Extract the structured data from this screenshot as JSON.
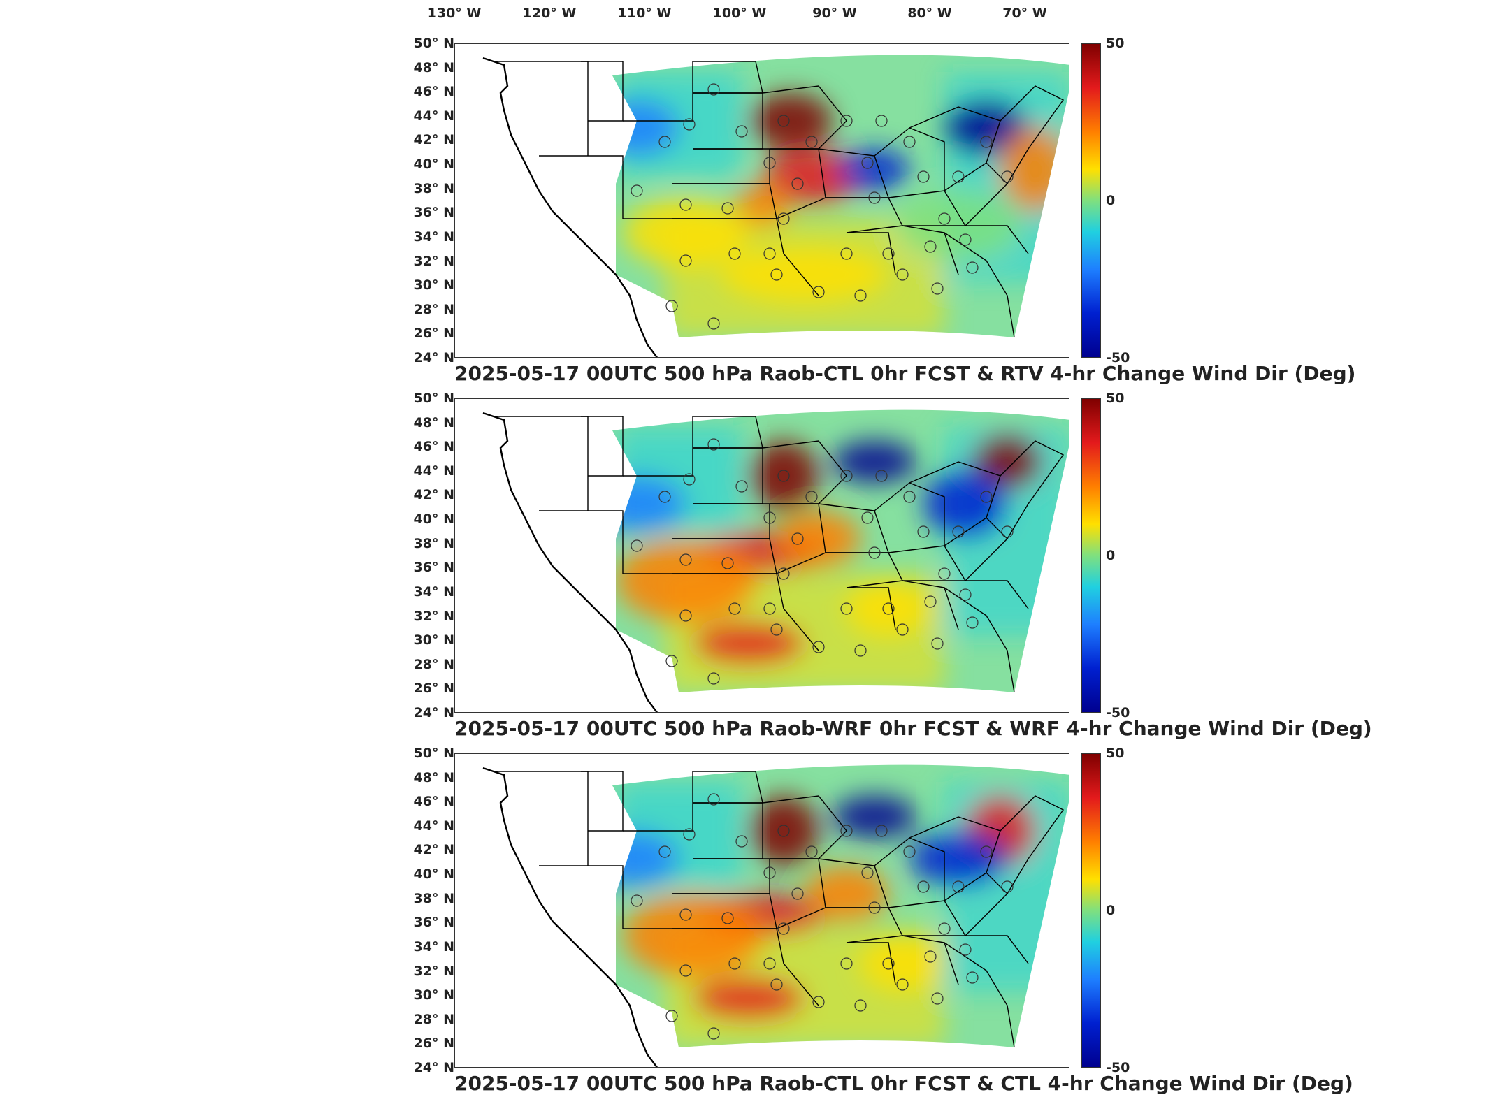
{
  "lon_labels": [
    "130° W",
    "120° W",
    "110° W",
    "100° W",
    "90° W",
    "80° W",
    "70° W"
  ],
  "lat_labels": [
    "50° N",
    "48° N",
    "46° N",
    "44° N",
    "42° N",
    "40° N",
    "38° N",
    "36° N",
    "34° N",
    "32° N",
    "30° N",
    "28° N",
    "26° N",
    "24° N"
  ],
  "colorbar": {
    "max": "50",
    "mid": "0",
    "min": "-50",
    "colors": [
      "#7f0000",
      "#e31a1c",
      "#ff7f00",
      "#ffe000",
      "#7fe07f",
      "#20d0e0",
      "#1e7fff",
      "#0020d0",
      "#00008f"
    ]
  },
  "panels": [
    {
      "title": "2025-05-17 00UTC 500 hPa Raob-CTL 0hr FCST & RTV 4-hr Change Wind Dir (Deg)"
    },
    {
      "title": "2025-05-17 00UTC 500 hPa Raob-WRF 0hr FCST & WRF 4-hr Change Wind Dir (Deg)"
    },
    {
      "title": "2025-05-17 00UTC 500 hPa Raob-CTL 0hr FCST & CTL 4-hr Change Wind Dir (Deg)"
    }
  ]
}
